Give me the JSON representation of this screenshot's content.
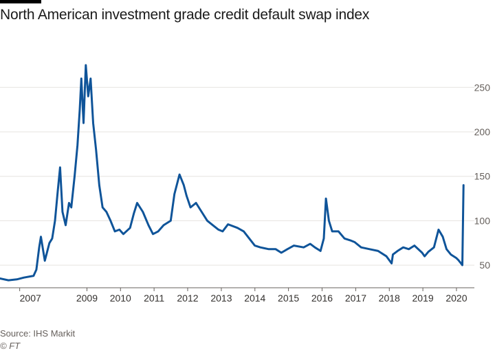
{
  "chart_data": {
    "type": "line",
    "title": "North American investment grade credit default swap index",
    "xlabel": "",
    "ylabel": "",
    "x_ticks": [
      "2007",
      "2009",
      "2010",
      "2011",
      "2012",
      "2013",
      "2014",
      "2015",
      "2016",
      "2017",
      "2018",
      "2019",
      "2020"
    ],
    "y_ticks": [
      50,
      100,
      150,
      200,
      250
    ],
    "ylim": [
      30,
      285
    ],
    "xlim": [
      "2006-06-01",
      "2020-04-30"
    ],
    "grid": "horizontal",
    "legend": "none",
    "series": [
      {
        "color": "#0f5499",
        "x": [
          "2006-06-01",
          "2006-09-01",
          "2006-12-01",
          "2007-02-15",
          "2007-06-01",
          "2007-07-01",
          "2007-08-01",
          "2007-08-20",
          "2007-10-01",
          "2007-11-20",
          "2007-12-20",
          "2008-01-20",
          "2008-02-20",
          "2008-03-15",
          "2008-04-10",
          "2008-05-15",
          "2008-06-20",
          "2008-07-15",
          "2008-08-20",
          "2008-09-20",
          "2008-10-15",
          "2008-11-01",
          "2008-11-25",
          "2008-12-20",
          "2009-01-15",
          "2009-02-10",
          "2009-03-10",
          "2009-04-10",
          "2009-05-15",
          "2009-06-20",
          "2009-08-01",
          "2009-09-15",
          "2009-11-01",
          "2009-12-20",
          "2010-02-01",
          "2010-04-15",
          "2010-05-25",
          "2010-07-01",
          "2010-09-01",
          "2010-11-01",
          "2010-12-20",
          "2011-02-15",
          "2011-04-15",
          "2011-07-01",
          "2011-08-10",
          "2011-10-04",
          "2011-11-20",
          "2011-12-20",
          "2012-02-01",
          "2012-04-01",
          "2012-06-01",
          "2012-08-01",
          "2012-10-01",
          "2012-12-01",
          "2013-01-15",
          "2013-03-15",
          "2013-06-25",
          "2013-09-01",
          "2013-11-01",
          "2013-12-31",
          "2014-03-01",
          "2014-06-01",
          "2014-08-15",
          "2014-10-15",
          "2014-12-20",
          "2015-03-01",
          "2015-06-15",
          "2015-08-25",
          "2015-10-15",
          "2015-12-15",
          "2016-01-20",
          "2016-02-12",
          "2016-03-15",
          "2016-04-20",
          "2016-06-27",
          "2016-09-01",
          "2016-11-01",
          "2016-12-20",
          "2017-03-01",
          "2017-06-01",
          "2017-09-01",
          "2017-12-01",
          "2018-01-26",
          "2018-02-09",
          "2018-04-01",
          "2018-06-01",
          "2018-08-01",
          "2018-10-01",
          "2018-12-24",
          "2019-01-20",
          "2019-03-01",
          "2019-05-01",
          "2019-06-20",
          "2019-08-05",
          "2019-09-15",
          "2019-11-01",
          "2019-12-31",
          "2020-01-20",
          "2020-02-20",
          "2020-03-05",
          "2020-03-18"
        ],
        "values": [
          35,
          33,
          34,
          36,
          38,
          45,
          70,
          82,
          55,
          75,
          80,
          100,
          135,
          160,
          110,
          95,
          120,
          115,
          150,
          185,
          225,
          260,
          210,
          275,
          240,
          260,
          210,
          180,
          140,
          115,
          110,
          100,
          88,
          90,
          85,
          92,
          108,
          120,
          110,
          95,
          85,
          88,
          95,
          100,
          130,
          152,
          140,
          128,
          115,
          120,
          110,
          100,
          95,
          90,
          88,
          96,
          92,
          88,
          80,
          72,
          70,
          68,
          68,
          64,
          68,
          72,
          70,
          74,
          70,
          66,
          80,
          125,
          100,
          88,
          88,
          80,
          78,
          76,
          70,
          68,
          66,
          60,
          52,
          62,
          66,
          70,
          68,
          72,
          64,
          60,
          65,
          70,
          90,
          82,
          68,
          62,
          58,
          56,
          52,
          50,
          140
        ]
      }
    ]
  },
  "source": "Source: IHS Markit",
  "credit": "© FT"
}
